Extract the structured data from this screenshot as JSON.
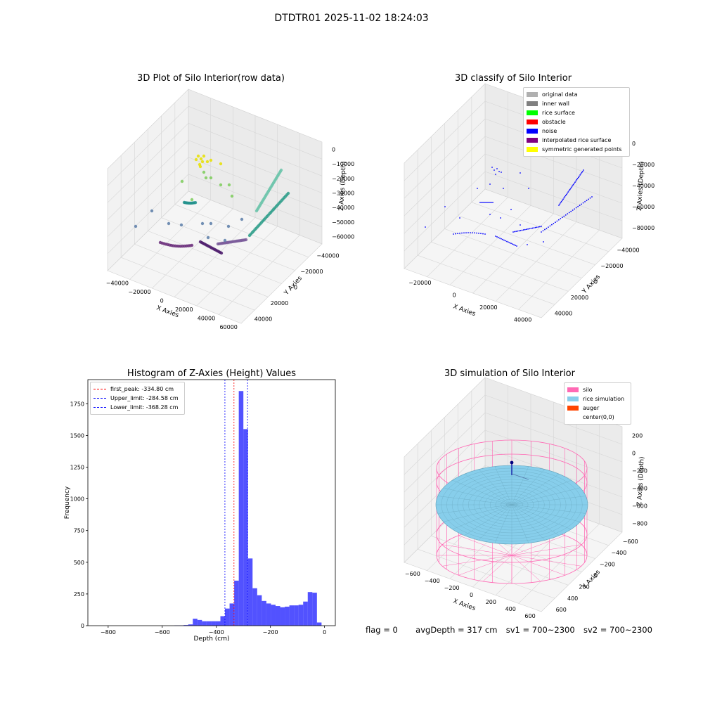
{
  "figure_title": "DTDTR01 2025-11-02 18:24:03",
  "footer": {
    "flag": "flag = 0",
    "avg_depth": "avgDepth = 317 cm",
    "sv1": "sv1 = 700~2300",
    "sv2": "sv2 = 700~2300"
  },
  "chart_data": [
    {
      "type": "scatter",
      "projection": "3d",
      "title": "3D Plot of Silo Interior(row data)",
      "xlabel": "X Axies",
      "ylabel": "Y Axies",
      "zlabel": "Z Axies (Depth)",
      "x_ticks": [
        "−40000",
        "−20000",
        "0",
        "20000",
        "40000",
        "60000"
      ],
      "y_ticks": [
        "40000",
        "20000",
        "0",
        "−20000",
        "−40000"
      ],
      "z_ticks": [
        "0",
        "−10000",
        "−20000",
        "−30000",
        "−40000",
        "−50000",
        "−60000"
      ],
      "colormap": "viridis",
      "grid": true
    },
    {
      "type": "scatter",
      "projection": "3d",
      "title": "3D classify of Silo Interior",
      "xlabel": "X Axies",
      "ylabel": "Y Axies",
      "zlabel": "Z Axies (Depth)",
      "x_ticks": [
        "−20000",
        "0",
        "20000",
        "40000"
      ],
      "y_ticks": [
        "40000",
        "20000",
        "0",
        "−20000",
        "−40000"
      ],
      "z_ticks": [
        "0",
        "−20000",
        "−40000",
        "−60000",
        "−80000"
      ],
      "legend": [
        {
          "label": "original data",
          "color": "#b0b0b0"
        },
        {
          "label": "inner wall",
          "color": "#808080"
        },
        {
          "label": "rice surface",
          "color": "#00ff00"
        },
        {
          "label": "obstacle",
          "color": "#ff0000"
        },
        {
          "label": "noise",
          "color": "#0000ff"
        },
        {
          "label": "interpolated rice surface",
          "color": "#800080"
        },
        {
          "label": "symmetric generated points",
          "color": "#ffff00"
        }
      ],
      "legend_placement": "top-right",
      "grid": true
    },
    {
      "type": "bar",
      "title": "Histogram of Z-Axies (Height) Values",
      "xlabel": "Depth (cm)",
      "ylabel": "Frequency",
      "xlim": [
        -875,
        40
      ],
      "ylim": [
        0,
        1940
      ],
      "x_ticks": [
        "−800",
        "−600",
        "−400",
        "−200",
        "0"
      ],
      "y_ticks": [
        "0",
        "250",
        "500",
        "750",
        "1000",
        "1250",
        "1500",
        "1750"
      ],
      "bin_width": 17,
      "bin_start": -555,
      "values": [
        2,
        2,
        5,
        10,
        55,
        45,
        35,
        35,
        35,
        35,
        75,
        135,
        175,
        355,
        1850,
        1550,
        530,
        295,
        240,
        195,
        175,
        165,
        155,
        145,
        150,
        160,
        160,
        165,
        190,
        265,
        260,
        25
      ],
      "color": "#0000ff",
      "lines": [
        {
          "label": "first_peak: -334.80 cm",
          "value": -334.8,
          "color": "#ff0000"
        },
        {
          "label": "Upper_limit: -284.58 cm",
          "value": -284.58,
          "color": "#0000ff"
        },
        {
          "label": "Lower_limit: -368.28 cm",
          "value": -368.28,
          "color": "#0000ff"
        }
      ],
      "legend_placement": "top-left",
      "grid": false
    },
    {
      "type": "surface",
      "projection": "3d",
      "title": "3D simulation of Silo Interior",
      "xlabel": "X Axies",
      "ylabel": "Y Axies",
      "zlabel": "Z Axies (Depth)",
      "x_ticks": [
        "−600",
        "−400",
        "−200",
        "0",
        "200",
        "400",
        "600"
      ],
      "y_ticks": [
        "600",
        "400",
        "200",
        "0",
        "−200",
        "−400",
        "−600"
      ],
      "z_ticks": [
        "200",
        "0",
        "−200",
        "−400",
        "−600",
        "−800"
      ],
      "legend": [
        {
          "label": "silo",
          "color": "#ff69b4"
        },
        {
          "label": "rice simulation",
          "color": "#87ceeb"
        },
        {
          "label": "auger",
          "color": "#ff4500"
        },
        {
          "label": "center(0,0)",
          "color": ""
        }
      ],
      "legend_placement": "top-right",
      "grid": true
    }
  ]
}
